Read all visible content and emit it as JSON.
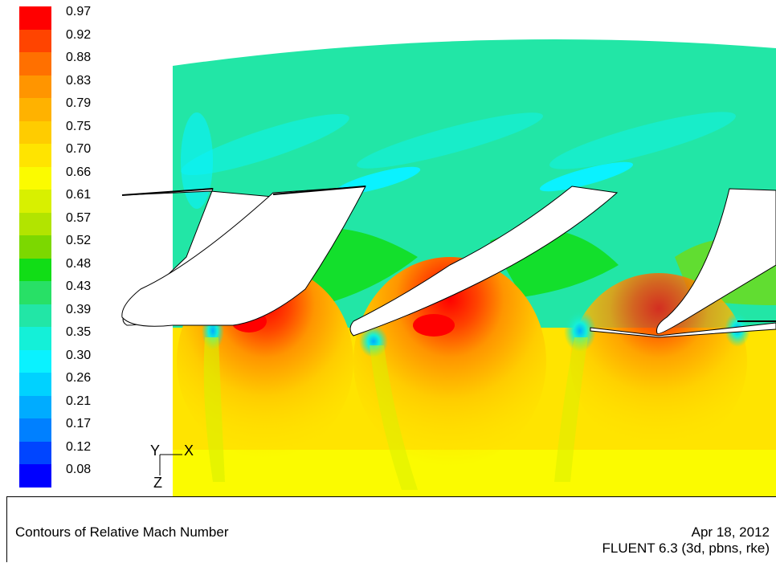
{
  "colorbar": {
    "levels": [
      {
        "label": "0.97",
        "color": "#ff0000"
      },
      {
        "label": "0.92",
        "color": "#ff4400"
      },
      {
        "label": "0.88",
        "color": "#ff7000"
      },
      {
        "label": "0.83",
        "color": "#ff9500"
      },
      {
        "label": "0.79",
        "color": "#ffb200"
      },
      {
        "label": "0.75",
        "color": "#ffcc00"
      },
      {
        "label": "0.70",
        "color": "#ffe400"
      },
      {
        "label": "0.66",
        "color": "#fbfb00"
      },
      {
        "label": "0.61",
        "color": "#d8f000"
      },
      {
        "label": "0.57",
        "color": "#b2e400"
      },
      {
        "label": "0.52",
        "color": "#7cd800"
      },
      {
        "label": "0.48",
        "color": "#11dd16"
      },
      {
        "label": "0.43",
        "color": "#28e066"
      },
      {
        "label": "0.39",
        "color": "#22e6a6"
      },
      {
        "label": "0.35",
        "color": "#14f0d8"
      },
      {
        "label": "0.30",
        "color": "#0af2ff"
      },
      {
        "label": "0.26",
        "color": "#00d2ff"
      },
      {
        "label": "0.21",
        "color": "#00acff"
      },
      {
        "label": "0.17",
        "color": "#0080ff"
      },
      {
        "label": "0.12",
        "color": "#0045ff"
      },
      {
        "label": "0.08",
        "color": "#0000ff"
      }
    ]
  },
  "axes": {
    "y": "Y",
    "x": "X",
    "z": "Z"
  },
  "footer": {
    "title": "Contours of Relative Mach Number",
    "date": "Apr 18, 2012",
    "solver": "FLUENT 6.3 (3d, pbns, rke)"
  }
}
